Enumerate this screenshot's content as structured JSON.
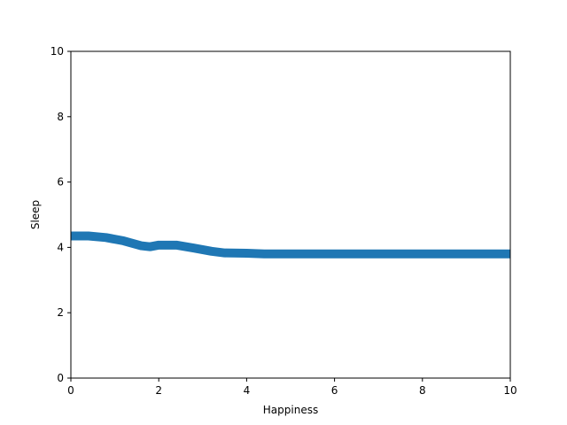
{
  "chart_data": {
    "type": "line",
    "title": "",
    "xlabel": "Happiness",
    "ylabel": "Sleep",
    "xlim": [
      0,
      10
    ],
    "ylim": [
      0,
      10
    ],
    "xticks": [
      "0",
      "2",
      "4",
      "6",
      "8",
      "10"
    ],
    "yticks": [
      "0",
      "2",
      "4",
      "6",
      "8",
      "10"
    ],
    "grid": false,
    "series": [
      {
        "color": "#1f77b4",
        "x": [
          0,
          0.4,
          0.8,
          1.2,
          1.6,
          1.8,
          2.0,
          2.4,
          2.8,
          3.2,
          3.5,
          4.0,
          4.4,
          5,
          6,
          7,
          8,
          9,
          10
        ],
        "y": [
          4.35,
          4.35,
          4.3,
          4.2,
          4.05,
          4.02,
          4.07,
          4.07,
          3.98,
          3.88,
          3.83,
          3.82,
          3.8,
          3.8,
          3.8,
          3.8,
          3.8,
          3.8,
          3.8
        ]
      }
    ]
  }
}
